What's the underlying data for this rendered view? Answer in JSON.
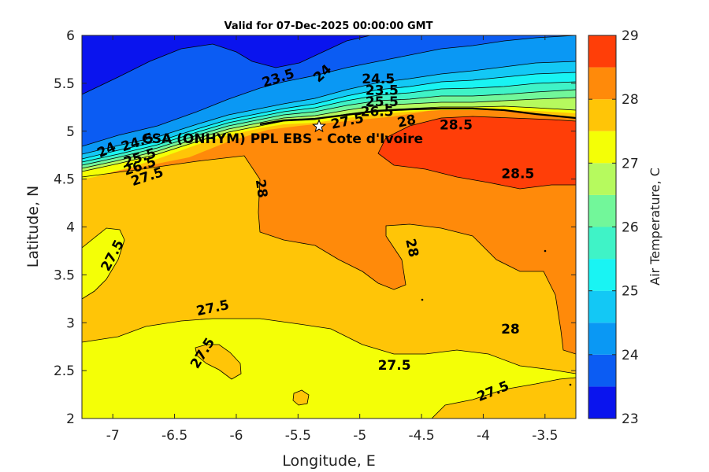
{
  "chart_data": {
    "type": "heatmap",
    "subtype": "filled-contour map",
    "title": "Valid for 07-Dec-2025 00:00:00 GMT",
    "xlabel": "Longitude, E",
    "ylabel": "Latitude, N",
    "xlim": [
      -7.25,
      -3.25
    ],
    "ylim": [
      2,
      6
    ],
    "xticks": [
      -7,
      -6.5,
      -6,
      -5.5,
      -5,
      -4.5,
      -4,
      -3.5
    ],
    "yticks": [
      2,
      2.5,
      3,
      3.5,
      4,
      4.5,
      5,
      5.5,
      6
    ],
    "colorbar": {
      "label": "Air Temperature, C",
      "range": [
        23,
        29
      ],
      "ticks": [
        23,
        24,
        25,
        26,
        27,
        28,
        29
      ],
      "levels": [
        23,
        23.5,
        24,
        24.5,
        25,
        25.5,
        26,
        26.5,
        27,
        27.5,
        28,
        28.5,
        29
      ],
      "colors": [
        "#0a14ee",
        "#0b5cf3",
        "#0a98f4",
        "#13c8f5",
        "#19f4f3",
        "#3ff3c7",
        "#72f79a",
        "#b6fa5e",
        "#f4ff06",
        "#ffc507",
        "#ff8a0a",
        "#ff3e08"
      ]
    },
    "site": {
      "name": "CSA (ONHYM) PPL EBS  - Cote d'Ivoire",
      "lon": -5.33,
      "lat": 5.05
    },
    "contour_labels": [
      {
        "text": "23.5",
        "lon": -5.66,
        "lat": 5.55,
        "angle": -18
      },
      {
        "text": "24",
        "lon": -5.3,
        "lat": 5.6,
        "angle": -42
      },
      {
        "text": "24.5",
        "lon": -4.85,
        "lat": 5.54,
        "angle": 0
      },
      {
        "text": "23.5",
        "lon": -4.82,
        "lat": 5.42,
        "angle": 0
      },
      {
        "text": "25.5",
        "lon": -4.82,
        "lat": 5.3,
        "angle": 0
      },
      {
        "text": "26.5",
        "lon": -4.86,
        "lat": 5.2,
        "angle": 0
      },
      {
        "text": "27.5",
        "lon": -5.1,
        "lat": 5.1,
        "angle": -12
      },
      {
        "text": "28",
        "lon": -4.62,
        "lat": 5.1,
        "angle": -12
      },
      {
        "text": "28.5",
        "lon": -4.22,
        "lat": 5.06,
        "angle": 0
      },
      {
        "text": "24",
        "lon": -7.05,
        "lat": 4.8,
        "angle": -25
      },
      {
        "text": "24.5",
        "lon": -6.8,
        "lat": 4.88,
        "angle": -18
      },
      {
        "text": "25.5",
        "lon": -6.78,
        "lat": 4.72,
        "angle": -18
      },
      {
        "text": "26.5",
        "lon": -6.78,
        "lat": 4.63,
        "angle": -18
      },
      {
        "text": "27.5",
        "lon": -6.72,
        "lat": 4.52,
        "angle": -18
      },
      {
        "text": "28",
        "lon": -5.8,
        "lat": 4.4,
        "angle": 82
      },
      {
        "text": "28.5",
        "lon": -3.72,
        "lat": 4.55,
        "angle": 0
      },
      {
        "text": "27.5",
        "lon": -7.0,
        "lat": 3.7,
        "angle": -62
      },
      {
        "text": "28",
        "lon": -4.58,
        "lat": 3.78,
        "angle": 78
      },
      {
        "text": "27.5",
        "lon": -6.19,
        "lat": 3.15,
        "angle": -12
      },
      {
        "text": "28",
        "lon": -3.78,
        "lat": 2.93,
        "angle": 0
      },
      {
        "text": "27.5",
        "lon": -6.27,
        "lat": 2.68,
        "angle": -58
      },
      {
        "text": "27.5",
        "lon": -4.72,
        "lat": 2.55,
        "angle": 0
      },
      {
        "text": "27.5",
        "lon": -3.92,
        "lat": 2.28,
        "angle": -22
      }
    ]
  }
}
